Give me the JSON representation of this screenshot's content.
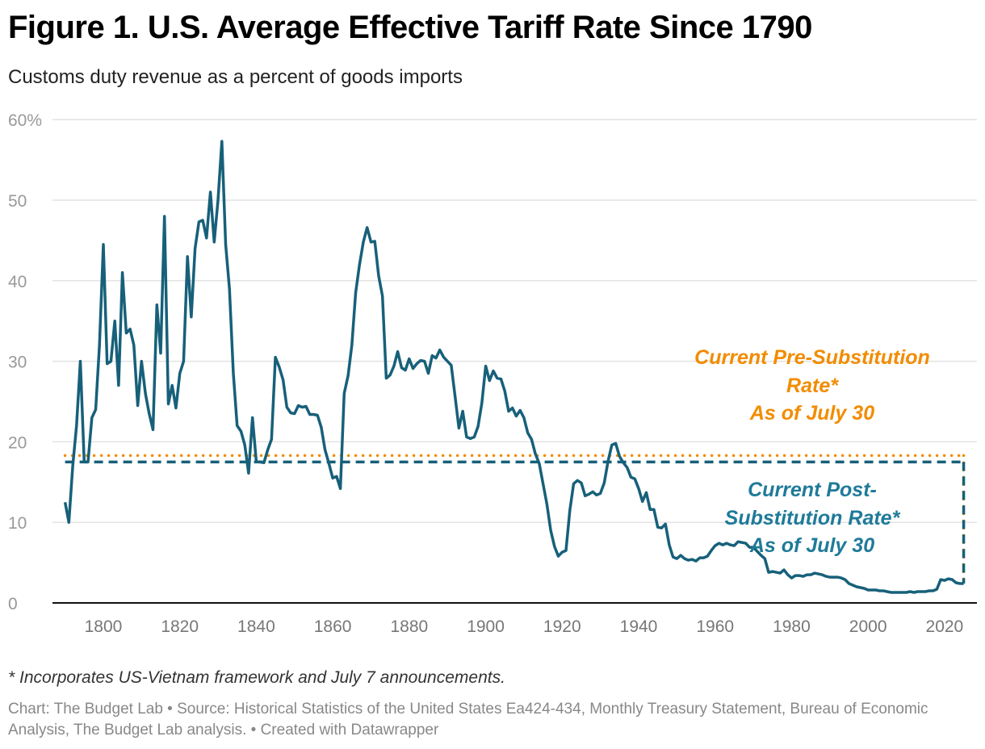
{
  "title": "Figure 1. U.S. Average Effective Tariff Rate Since 1790",
  "subtitle": "Customs duty revenue as a percent of goods imports",
  "footnote": "* Incorporates US-Vietnam framework and July 7 announcements.",
  "source": "Chart: The Budget Lab • Source: Historical Statistics of the United States Ea424-434, Monthly Treasury Statement, Bureau of Economic Analysis, The Budget Lab analysis. • Created with Datawrapper",
  "chart_data": {
    "type": "line",
    "title": "Figure 1. U.S. Average Effective Tariff Rate Since 1790",
    "subtitle": "Customs duty revenue as a percent of goods imports",
    "xlabel": "",
    "ylabel": "",
    "xlim": [
      1790,
      2025
    ],
    "ylim": [
      0,
      60
    ],
    "yticks": [
      0,
      10,
      20,
      30,
      40,
      50,
      60
    ],
    "ytick_labels": [
      "0",
      "10",
      "20",
      "30",
      "40",
      "50",
      "60%"
    ],
    "xticks": [
      1800,
      1820,
      1840,
      1860,
      1880,
      1900,
      1920,
      1940,
      1960,
      1980,
      2000,
      2020
    ],
    "xtick_labels": [
      "1800",
      "1820",
      "1840",
      "1860",
      "1880",
      "1900",
      "1920",
      "1940",
      "1960",
      "1980",
      "2000",
      "2020"
    ],
    "grid": true,
    "colors": {
      "series": "#17607a",
      "pre": "#f28c00",
      "post": "#1f7a99",
      "grid": "#e3e3e3"
    },
    "series": [
      {
        "x": [
          1790,
          1791,
          1792,
          1793,
          1794,
          1795,
          1796,
          1797,
          1798,
          1799,
          1800,
          1801,
          1802,
          1803,
          1804,
          1805,
          1806,
          1807,
          1808,
          1809,
          1810,
          1811,
          1812,
          1813,
          1814,
          1815,
          1816,
          1817,
          1818,
          1819,
          1820,
          1821,
          1822,
          1823,
          1824,
          1825,
          1826,
          1827,
          1828,
          1829,
          1830,
          1831,
          1832,
          1833,
          1834,
          1835,
          1836,
          1837,
          1838,
          1839,
          1840,
          1841,
          1842,
          1843,
          1844,
          1845,
          1846,
          1847,
          1848,
          1849,
          1850,
          1851,
          1852,
          1853,
          1854,
          1855,
          1856,
          1857,
          1858,
          1859,
          1860,
          1861,
          1862,
          1863,
          1864,
          1865,
          1866,
          1867,
          1868,
          1869,
          1870,
          1871,
          1872,
          1873,
          1874,
          1875,
          1876,
          1877,
          1878,
          1879,
          1880,
          1881,
          1882,
          1883,
          1884,
          1885,
          1886,
          1887,
          1888,
          1889,
          1890,
          1891,
          1892,
          1893,
          1894,
          1895,
          1896,
          1897,
          1898,
          1899,
          1900,
          1901,
          1902,
          1903,
          1904,
          1905,
          1906,
          1907,
          1908,
          1909,
          1910,
          1911,
          1912,
          1913,
          1914,
          1915,
          1916,
          1917,
          1918,
          1919,
          1920,
          1921,
          1922,
          1923,
          1924,
          1925,
          1926,
          1927,
          1928,
          1929,
          1930,
          1931,
          1932,
          1933,
          1934,
          1935,
          1936,
          1937,
          1938,
          1939,
          1940,
          1941,
          1942,
          1943,
          1944,
          1945,
          1946,
          1947,
          1948,
          1949,
          1950,
          1951,
          1952,
          1953,
          1954,
          1955,
          1956,
          1957,
          1958,
          1959,
          1960,
          1961,
          1962,
          1963,
          1964,
          1965,
          1966,
          1967,
          1968,
          1969,
          1970,
          1971,
          1972,
          1973,
          1974,
          1975,
          1976,
          1977,
          1978,
          1979,
          1980,
          1981,
          1982,
          1983,
          1984,
          1985,
          1986,
          1987,
          1988,
          1989,
          1990,
          1991,
          1992,
          1993,
          1994,
          1995,
          1996,
          1997,
          1998,
          1999,
          2000,
          2001,
          2002,
          2003,
          2004,
          2005,
          2006,
          2007,
          2008,
          2009,
          2010,
          2011,
          2012,
          2013,
          2014,
          2015,
          2016,
          2017,
          2018,
          2019,
          2020,
          2021,
          2022,
          2023,
          2024
        ],
        "y": [
          12.5,
          10,
          17,
          22,
          30,
          17.5,
          17.5,
          23,
          24,
          32,
          44.5,
          29.7,
          30,
          35,
          27,
          41,
          33.5,
          34,
          32,
          24.5,
          30,
          26,
          23.5,
          21.5,
          37,
          31,
          48,
          24.7,
          27,
          24.2,
          28.5,
          30,
          43,
          35.5,
          44,
          47.3,
          47.5,
          45.3,
          51,
          44.8,
          50,
          57.3,
          44.5,
          39,
          28.5,
          22,
          21.3,
          19.6,
          16.1,
          23,
          17.6,
          17.5,
          17.4,
          19,
          20.3,
          30.5,
          29.3,
          27.7,
          24.3,
          23.6,
          23.5,
          24.5,
          24.3,
          24.4,
          23.4,
          23.4,
          23.3,
          21.8,
          19,
          17.3,
          15.5,
          15.7,
          14.2,
          26,
          28.2,
          32,
          38.5,
          42,
          44.8,
          46.6,
          44.8,
          44.9,
          40.6,
          38.1,
          27.9,
          28.3,
          29.4,
          31.2,
          29.2,
          28.9,
          30.3,
          29.1,
          29.7,
          30.1,
          30,
          28.5,
          30.7,
          30.4,
          31.4,
          30.5,
          30,
          29.5,
          25.6,
          21.7,
          23.8,
          20.6,
          20.4,
          20.6,
          21.9,
          24.8,
          29.4,
          27.6,
          28.8,
          27.9,
          27.8,
          26.3,
          23.8,
          24.2,
          23.2,
          23.9,
          23,
          21.1,
          20.3,
          18.5,
          17.3,
          14.8,
          12.3,
          9,
          7,
          5.8,
          6.3,
          6.5,
          11.5,
          14.8,
          15.2,
          14.9,
          13.3,
          13.5,
          13.8,
          13.4,
          13.6,
          14.9,
          17.6,
          19.6,
          19.8,
          18.2,
          17.4,
          16.8,
          15.6,
          15.4,
          14.2,
          12.6,
          13.7,
          11.6,
          11.6,
          9.4,
          9.3,
          9.8,
          7.2,
          5.7,
          5.5,
          5.9,
          5.5,
          5.3,
          5.4,
          5.2,
          5.6,
          5.6,
          5.8,
          6.5,
          7.1,
          7.4,
          7.2,
          7.4,
          7.2,
          7.1,
          7.6,
          7.5,
          7.4,
          6.9,
          6.9,
          6.4,
          5.9,
          5.5,
          3.8,
          3.9,
          3.8,
          3.7,
          4.1,
          3.5,
          3.1,
          3.4,
          3.4,
          3.3,
          3.5,
          3.5,
          3.7,
          3.6,
          3.5,
          3.3,
          3.2,
          3.2,
          3.2,
          3.1,
          2.9,
          2.4,
          2.2,
          2.0,
          1.9,
          1.8,
          1.6,
          1.6,
          1.6,
          1.5,
          1.5,
          1.4,
          1.3,
          1.3,
          1.3,
          1.3,
          1.3,
          1.4,
          1.3,
          1.4,
          1.4,
          1.4,
          1.5,
          1.5,
          1.7,
          2.9,
          2.8,
          3.0,
          2.9,
          2.5,
          2.4
        ]
      }
    ],
    "reference_lines": [
      {
        "label_lines": [
          "Current Pre-Substitution",
          "Rate*",
          "As of July 30"
        ],
        "value": 18.3,
        "style": "dotted",
        "color": "#f28c00"
      },
      {
        "label_lines": [
          "Current Post-",
          "Substitution Rate*",
          "As of July 30"
        ],
        "value": 17.5,
        "style": "dashed",
        "color": "#17607a",
        "label_color": "#1f7a99"
      }
    ],
    "reference_end_year": 2025
  }
}
